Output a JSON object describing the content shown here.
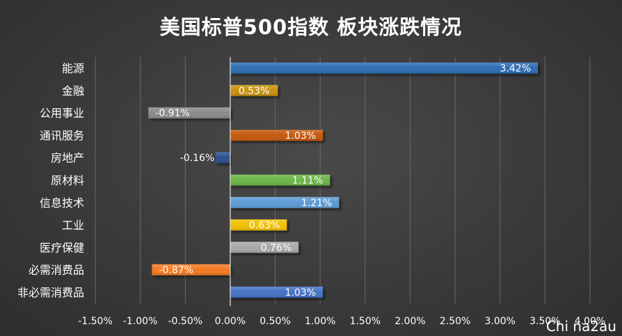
{
  "chart_data": {
    "type": "bar",
    "orientation": "horizontal",
    "title": "美国标普500指数 板块涨跌情况",
    "categories": [
      "能源",
      "金融",
      "公用事业",
      "通讯服务",
      "房地产",
      "原材料",
      "信息技术",
      "工业",
      "医疗保健",
      "必需消费品",
      "非必需消费品"
    ],
    "values": [
      3.42,
      0.53,
      -0.91,
      1.03,
      -0.16,
      1.11,
      1.21,
      0.63,
      0.76,
      -0.87,
      1.03
    ],
    "data_labels": [
      "3.42%",
      "0.53%",
      "-0.91%",
      "1.03%",
      "-0.16%",
      "1.11%",
      "1.21%",
      "0.63%",
      "0.76%",
      "-0.87%",
      "1.03%"
    ],
    "colors": [
      "#2e6db4",
      "#c8920e",
      "#8a8a8a",
      "#c5580c",
      "#2b4f8f",
      "#6ab445",
      "#5b9bd5",
      "#f2c000",
      "#a8a8a8",
      "#f47920",
      "#4472c4"
    ],
    "xlim": [
      -1.5,
      4.0
    ],
    "x_ticks": [
      -1.5,
      -1.0,
      -0.5,
      0.0,
      0.5,
      1.0,
      1.5,
      2.0,
      2.5,
      3.0,
      3.5,
      4.0
    ],
    "x_tick_labels": [
      "-1.50%",
      "-1.00%",
      "-0.50%",
      "0.00%",
      "0.50%",
      "1.00%",
      "1.50%",
      "2.00%",
      "2.50%",
      "3.00%",
      "3.50%",
      "4.00%"
    ],
    "grid": true,
    "legend": "none"
  },
  "watermark": "Chi na2au"
}
